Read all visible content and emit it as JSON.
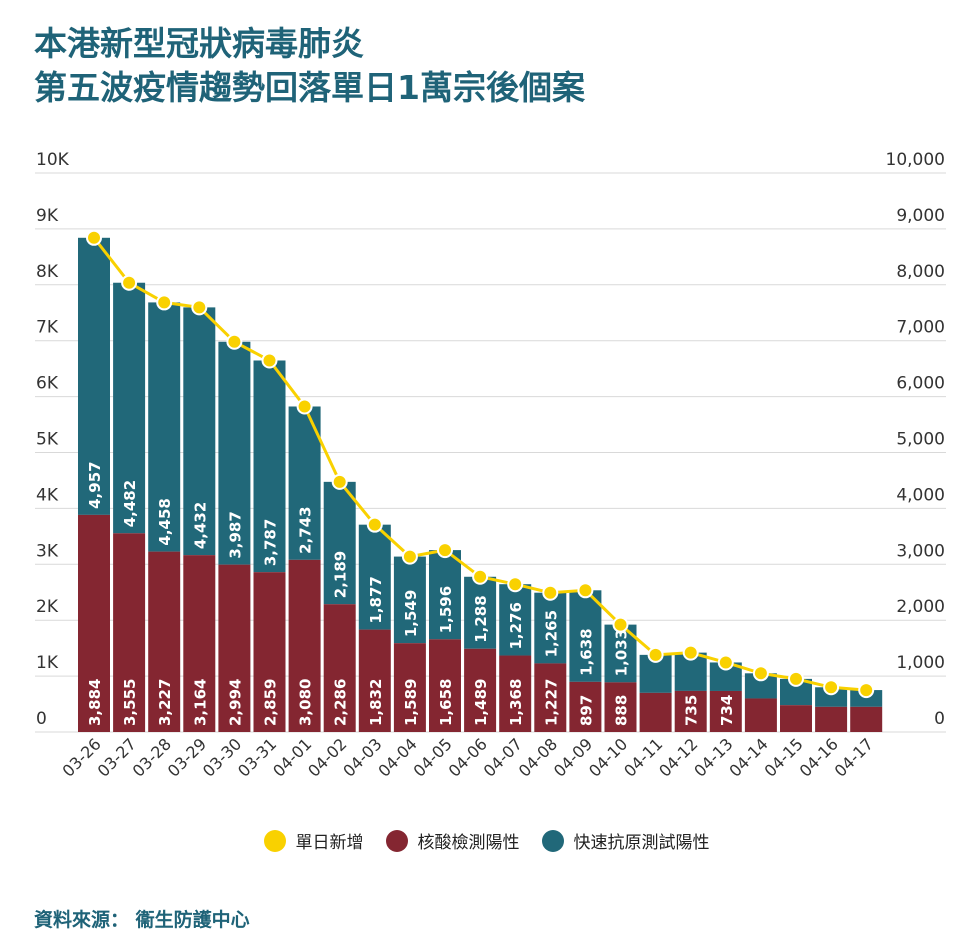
{
  "title": {
    "line1": "本港新型冠狀病毒肺炎",
    "line2": "第五波疫情趨勢回落單日1萬宗後個案"
  },
  "source": "資料來源： 衞生防護中心",
  "colors": {
    "line": "#f9d100",
    "pcr": "#842631",
    "rat": "#216879",
    "grid": "#d9d9d9",
    "title": "#1f6378"
  },
  "legend": [
    {
      "label": "單日新增",
      "color": "#f9d100"
    },
    {
      "label": "核酸檢測陽性",
      "color": "#842631"
    },
    {
      "label": "快速抗原測試陽性",
      "color": "#216879"
    }
  ],
  "chart_data": {
    "type": "bar",
    "stacked": true,
    "categories": [
      "03-26",
      "03-27",
      "03-28",
      "03-29",
      "03-30",
      "03-31",
      "04-01",
      "04-02",
      "04-03",
      "04-04",
      "04-05",
      "04-06",
      "04-07",
      "04-08",
      "04-09",
      "04-10",
      "04-11",
      "04-12",
      "04-13",
      "04-14",
      "04-15",
      "04-16",
      "04-17"
    ],
    "series": [
      {
        "name": "核酸檢測陽性",
        "kind": "bar",
        "values": [
          3884,
          3555,
          3227,
          3164,
          2994,
          2859,
          3080,
          2286,
          1832,
          1589,
          1658,
          1489,
          1368,
          1227,
          897,
          888,
          700,
          735,
          734,
          600,
          480,
          450,
          450
        ],
        "labels": [
          "3,884",
          "3,555",
          "3,227",
          "3,164",
          "2,994",
          "2,859",
          "3,080",
          "2,286",
          "1,832",
          "1,589",
          "1,658",
          "1,489",
          "1,368",
          "1,227",
          "897",
          "888",
          "",
          "735",
          "734",
          "",
          "",
          "",
          ""
        ]
      },
      {
        "name": "快速抗原測試陽性",
        "kind": "bar",
        "values": [
          4957,
          4482,
          4458,
          4432,
          3987,
          3787,
          2743,
          2189,
          1877,
          1549,
          1596,
          1288,
          1276,
          1265,
          1638,
          1033,
          680,
          685,
          510,
          450,
          470,
          350,
          300
        ],
        "labels": [
          "4,957",
          "4,482",
          "4,458",
          "4,432",
          "3,987",
          "3,787",
          "2,743",
          "2,189",
          "1,877",
          "1,549",
          "1,596",
          "1,288",
          "1,276",
          "1,265",
          "1,638",
          "1,033",
          "",
          "",
          "",
          "",
          "",
          "",
          ""
        ]
      },
      {
        "name": "單日新增",
        "kind": "line",
        "values": [
          8841,
          8037,
          7685,
          7596,
          6981,
          6646,
          5823,
          4475,
          3709,
          3138,
          3254,
          2777,
          2644,
          2492,
          2535,
          1921,
          1380,
          1420,
          1244,
          1050,
          950,
          800,
          750
        ]
      }
    ],
    "ylim": [
      0,
      10000
    ],
    "yticks_left": [
      "0",
      "1K",
      "2K",
      "3K",
      "4K",
      "5K",
      "6K",
      "7K",
      "8K",
      "9K",
      "10K"
    ],
    "yticks_right": [
      "0",
      "1,000",
      "2,000",
      "3,000",
      "4,000",
      "5,000",
      "6,000",
      "7,000",
      "8,000",
      "9,000",
      "10,000"
    ],
    "grid": true,
    "legend_position": "bottom"
  }
}
